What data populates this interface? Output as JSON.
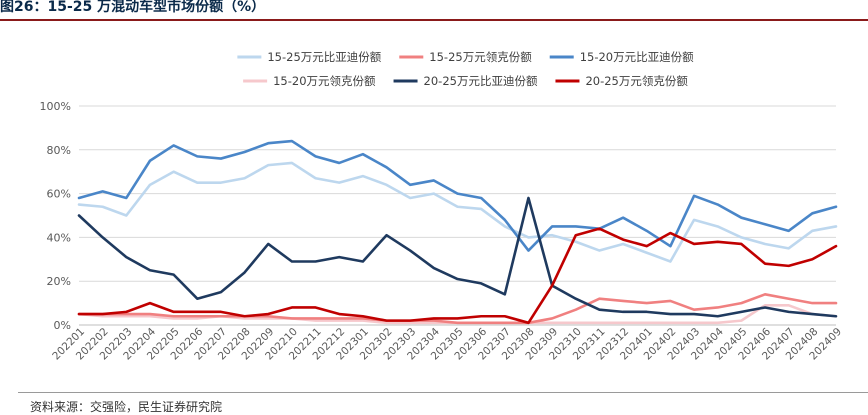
{
  "figure": {
    "title": "图26：15-25 万混动车型市场份额（%）",
    "source": "资料来源：交强险，民生证券研究院"
  },
  "colors": {
    "title": "#0b2a4a",
    "rule": "#8a1a1a",
    "grid": "#d9d9d9",
    "axis_text": "#595959"
  },
  "chart_data": {
    "type": "line",
    "title": "",
    "xlabel": "",
    "ylabel": "",
    "ylim": [
      0,
      100
    ],
    "yticks": [
      "0%",
      "20%",
      "40%",
      "60%",
      "80%",
      "100%"
    ],
    "ytick_values": [
      0,
      20,
      40,
      60,
      80,
      100
    ],
    "grid": "horizontal",
    "legend_position": "top-center",
    "categories": [
      "202201",
      "202202",
      "202203",
      "202204",
      "202205",
      "202206",
      "202207",
      "202208",
      "202209",
      "202210",
      "202211",
      "202212",
      "202301",
      "202302",
      "202303",
      "202304",
      "202305",
      "202306",
      "202307",
      "202308",
      "202309",
      "202310",
      "202311",
      "202312",
      "202401",
      "202402",
      "202403",
      "202404",
      "202405",
      "202406",
      "202407",
      "202408",
      "202409"
    ],
    "series": [
      {
        "name": "15-25万元比亚迪份额",
        "color": "#bdd7ee",
        "values": [
          55,
          54,
          50,
          64,
          70,
          65,
          65,
          67,
          73,
          74,
          67,
          65,
          68,
          64,
          58,
          60,
          54,
          53,
          45,
          40,
          41,
          38,
          34,
          37,
          33,
          29,
          48,
          45,
          40,
          37,
          35,
          43,
          45
        ]
      },
      {
        "name": "15-25万元领克份额",
        "color": "#f08080",
        "values": [
          5,
          5,
          5,
          5,
          4,
          4,
          4,
          4,
          4,
          3,
          3,
          3,
          3,
          2,
          2,
          2,
          1,
          1,
          1,
          1,
          3,
          7,
          12,
          11,
          10,
          11,
          7,
          8,
          10,
          14,
          12,
          10,
          10
        ]
      },
      {
        "name": "15-20万元比亚迪份额",
        "color": "#4a86c8",
        "values": [
          58,
          61,
          58,
          75,
          82,
          77,
          76,
          79,
          83,
          84,
          77,
          74,
          78,
          72,
          64,
          66,
          60,
          58,
          48,
          34,
          45,
          45,
          44,
          49,
          43,
          36,
          59,
          55,
          49,
          46,
          43,
          51,
          54
        ]
      },
      {
        "name": "15-20万元领克份额",
        "color": "#f6c8cc",
        "values": [
          5,
          4,
          4,
          4,
          3,
          3,
          4,
          3,
          3,
          3,
          2,
          2,
          2,
          1,
          1,
          1,
          1,
          1,
          1,
          1,
          1,
          1,
          1,
          1,
          1,
          1,
          1,
          1,
          2,
          9,
          9,
          5,
          4
        ]
      },
      {
        "name": "20-25万元比亚迪份额",
        "color": "#1f3a5f",
        "values": [
          50,
          40,
          31,
          25,
          23,
          12,
          15,
          24,
          37,
          29,
          29,
          31,
          29,
          41,
          34,
          26,
          21,
          19,
          14,
          58,
          18,
          12,
          7,
          6,
          6,
          5,
          5,
          4,
          6,
          8,
          6,
          5,
          4
        ]
      },
      {
        "name": "20-25万元领克份额",
        "color": "#c00000",
        "values": [
          5,
          5,
          6,
          10,
          6,
          6,
          6,
          4,
          5,
          8,
          8,
          5,
          4,
          2,
          2,
          3,
          3,
          4,
          4,
          1,
          18,
          41,
          44,
          39,
          36,
          42,
          37,
          38,
          37,
          28,
          27,
          30,
          36
        ]
      }
    ]
  }
}
